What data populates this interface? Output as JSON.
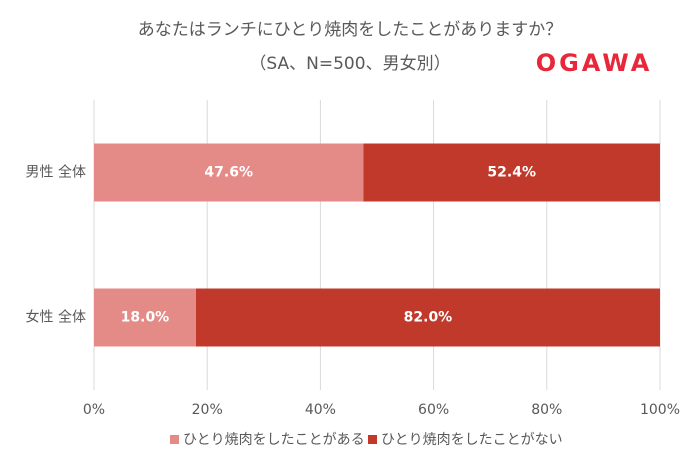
{
  "chart_data": {
    "type": "stacked-bar-horizontal",
    "title": "あなたはランチにひとり焼肉をしたことがありますか？",
    "subtitle": "（SA、N=500、男女別）",
    "logo": "OGAWA",
    "categories": [
      "男性 全体",
      "女性 全体"
    ],
    "series": [
      {
        "name": "ひとり焼肉をしたことがある",
        "color": "#e58b87",
        "values": [
          47.6,
          18.0
        ],
        "value_labels": [
          "47.6%",
          "18.0%"
        ]
      },
      {
        "name": "ひとり焼肉をしたことがない",
        "color": "#c0392b",
        "values": [
          52.4,
          82.0
        ],
        "value_labels": [
          "52.4%",
          "82.0%"
        ]
      }
    ],
    "xlim": [
      0,
      100
    ],
    "xticks": [
      {
        "value": 0,
        "label": "0%"
      },
      {
        "value": 20,
        "label": "20%"
      },
      {
        "value": 40,
        "label": "40%"
      },
      {
        "value": 60,
        "label": "60%"
      },
      {
        "value": 80,
        "label": "80%"
      },
      {
        "value": 100,
        "label": "100%"
      }
    ],
    "grid": true,
    "legend": "bottom"
  }
}
